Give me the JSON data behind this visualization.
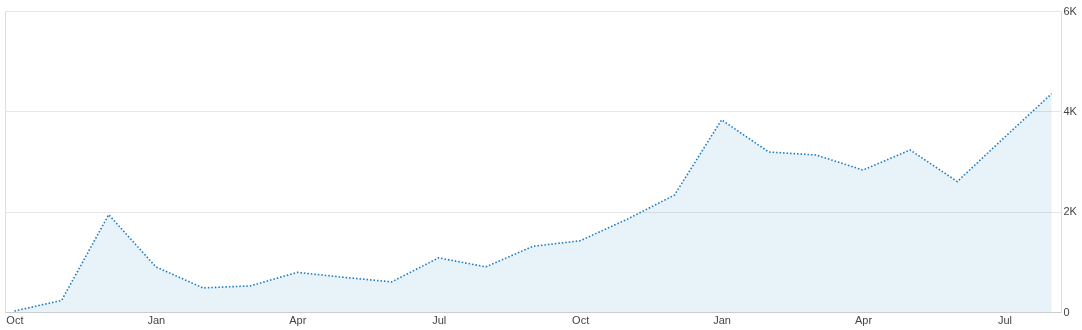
{
  "chart_data": {
    "type": "area",
    "categories": [
      "Oct",
      null,
      null,
      "Jan",
      null,
      null,
      "Apr",
      null,
      null,
      "Jul",
      null,
      null,
      "Oct",
      null,
      null,
      "Jan",
      null,
      null,
      "Apr",
      null,
      null,
      "Jul",
      null
    ],
    "series": [
      {
        "color": "#1a7bc4",
        "values": [
          20,
          230,
          1940,
          900,
          480,
          520,
          790,
          690,
          600,
          1080,
          900,
          1310,
          1420,
          1850,
          2330,
          3830,
          3190,
          3130,
          2830,
          3230,
          2600,
          3480,
          4350
        ]
      }
    ],
    "ylim": [
      0,
      6000
    ],
    "yticks": [
      {
        "value": 0,
        "label": "0"
      },
      {
        "value": 2000,
        "label": "2K"
      },
      {
        "value": 4000,
        "label": "4K"
      },
      {
        "value": 6000,
        "label": "6K"
      }
    ],
    "grid": "y",
    "legend": false,
    "marker": "none",
    "line_style": "dotted"
  }
}
